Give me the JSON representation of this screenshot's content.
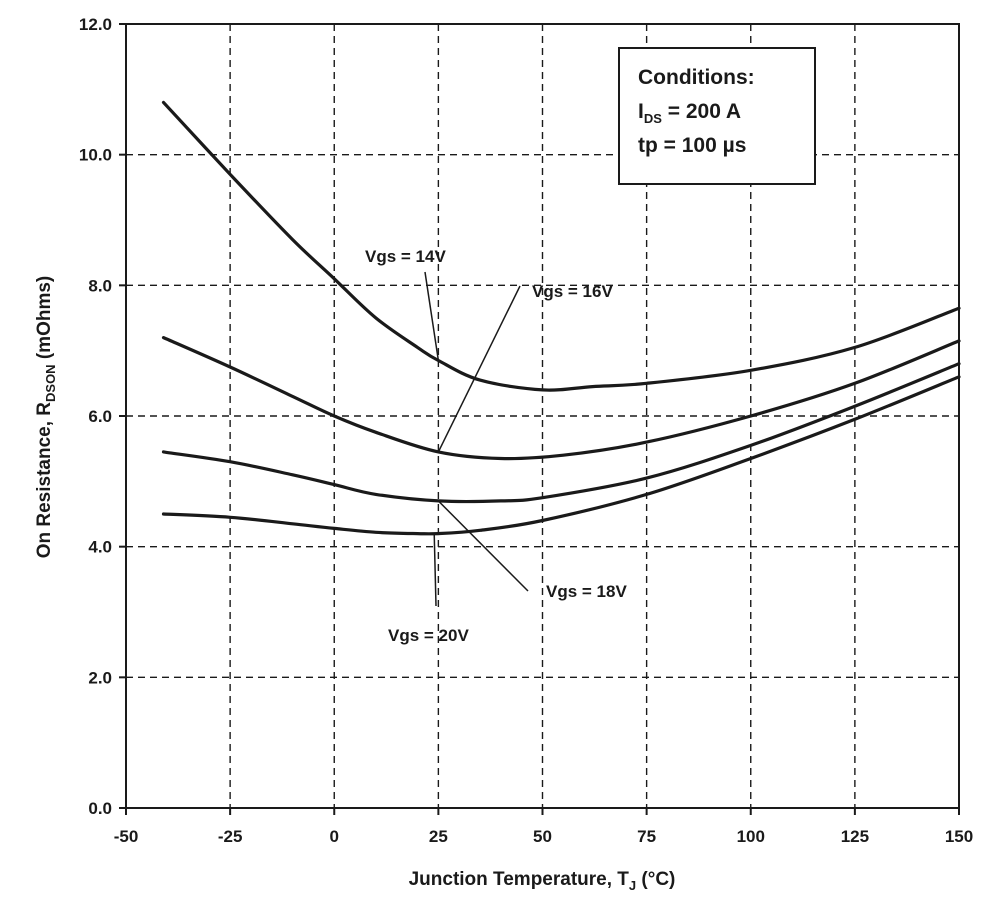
{
  "chart_data": {
    "type": "line",
    "title": "",
    "xlabel": "Junction Temperature, T",
    "xlabel_sub": "J",
    "xlabel_unit": "(°C)",
    "ylabel": "On Resistance, R",
    "ylabel_sub": "DSON",
    "ylabel_unit": "(mOhms)",
    "xlim": [
      -50,
      150
    ],
    "ylim": [
      0,
      12
    ],
    "x_ticks": [
      "-50",
      "-25",
      "0",
      "25",
      "50",
      "75",
      "100",
      "125",
      "150"
    ],
    "y_ticks": [
      "0.0",
      "2.0",
      "4.0",
      "6.0",
      "8.0",
      "10.0",
      "12.0"
    ],
    "grid": "dashed",
    "line_color": "#1a1a1a",
    "series": [
      {
        "name": "Vgs = 14V",
        "x": [
          -41,
          -25,
          -10,
          0,
          10,
          20,
          25,
          35,
          50,
          62,
          75,
          100,
          125,
          150
        ],
        "y": [
          10.8,
          9.7,
          8.7,
          8.1,
          7.5,
          7.05,
          6.85,
          6.55,
          6.4,
          6.45,
          6.5,
          6.7,
          7.05,
          7.65
        ]
      },
      {
        "name": "Vgs = 16V",
        "x": [
          -41,
          -25,
          -10,
          0,
          10,
          25,
          40,
          55,
          75,
          100,
          125,
          150
        ],
        "y": [
          7.2,
          6.75,
          6.3,
          6.0,
          5.75,
          5.45,
          5.35,
          5.4,
          5.6,
          6.0,
          6.5,
          7.15
        ]
      },
      {
        "name": "Vgs = 18V",
        "x": [
          -41,
          -25,
          -10,
          0,
          10,
          25,
          40,
          50,
          75,
          100,
          125,
          150
        ],
        "y": [
          5.45,
          5.3,
          5.1,
          4.95,
          4.8,
          4.7,
          4.7,
          4.75,
          5.05,
          5.55,
          6.15,
          6.8
        ]
      },
      {
        "name": "Vgs = 20V",
        "x": [
          -41,
          -25,
          -10,
          0,
          10,
          20,
          25,
          35,
          50,
          75,
          100,
          125,
          150
        ],
        "y": [
          4.5,
          4.45,
          4.35,
          4.28,
          4.22,
          4.2,
          4.2,
          4.25,
          4.4,
          4.8,
          5.35,
          5.95,
          6.6
        ]
      }
    ],
    "annotations": [
      {
        "label": "Vgs = 14V",
        "series": "Vgs = 14V",
        "at_x": 25
      },
      {
        "label": "Vgs = 16V",
        "series": "Vgs = 16V",
        "at_x": 25
      },
      {
        "label": "Vgs = 18V",
        "series": "Vgs = 18V",
        "at_x": 25
      },
      {
        "label": "Vgs = 20V",
        "series": "Vgs = 20V",
        "at_x": 24
      }
    ],
    "conditions_box": {
      "heading": "Conditions:",
      "line1_main": "I",
      "line1_sub": "DS",
      "line1_rest": " = 200 A",
      "line2": "tp = 100 µs"
    }
  }
}
